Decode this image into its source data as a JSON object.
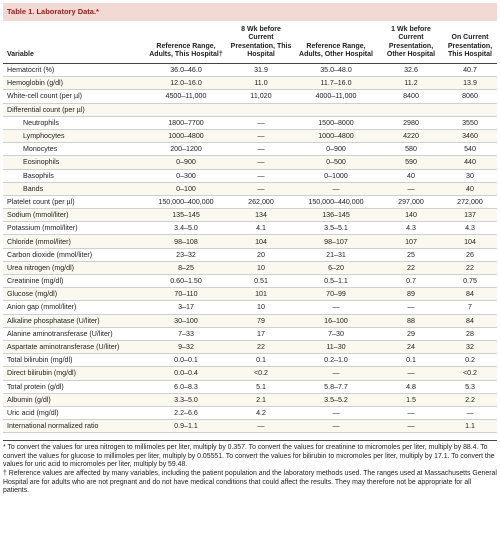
{
  "table": {
    "title": "Table 1. Laboratory Data.*",
    "headers": [
      "Variable",
      "Reference Range, Adults, This Hospital†",
      "8 Wk before Current Presentation, This Hospital",
      "Reference Range, Adults, Other Hospital",
      "1 Wk before Current Presentation, Other Hospital",
      "On Current Presentation, This Hospital"
    ],
    "rows": [
      [
        "Hematocrit (%)",
        "36.0–46.0",
        "31.9",
        "35.0–48.0",
        "32.6",
        "40.7"
      ],
      [
        "Hemoglobin (g/dl)",
        "12.0–16.0",
        "11.0",
        "11.7–16.0",
        "11.2",
        "13.9"
      ],
      [
        "White-cell count (per µl)",
        "4500–11,000",
        "11,020",
        "4000–11,000",
        "8400",
        "8060"
      ],
      {
        "label": "Differential count (per µl)",
        "rows": [
          [
            "Neutrophils",
            "1800–7700",
            "—",
            "1500–8000",
            "2980",
            "3550"
          ],
          [
            "Lymphocytes",
            "1000–4800",
            "—",
            "1000–4800",
            "4220",
            "3460"
          ],
          [
            "Monocytes",
            "200–1200",
            "—",
            "0–900",
            "580",
            "540"
          ],
          [
            "Eosinophils",
            "0–900",
            "—",
            "0–500",
            "590",
            "440"
          ],
          [
            "Basophils",
            "0–300",
            "—",
            "0–1000",
            "40",
            "30"
          ],
          [
            "Bands",
            "0–100",
            "—",
            "—",
            "—",
            "40"
          ]
        ]
      },
      [
        "Platelet count (per µl)",
        "150,000–400,000",
        "262,000",
        "150,000–440,000",
        "297,000",
        "272,000"
      ],
      [
        "Sodium (mmol/liter)",
        "135–145",
        "134",
        "136–145",
        "140",
        "137"
      ],
      [
        "Potassium (mmol/liter)",
        "3.4–5.0",
        "4.1",
        "3.5–5.1",
        "4.3",
        "4.3"
      ],
      [
        "Chloride (mmol/liter)",
        "98–108",
        "104",
        "98–107",
        "107",
        "104"
      ],
      [
        "Carbon dioxide (mmol/liter)",
        "23–32",
        "20",
        "21–31",
        "25",
        "26"
      ],
      [
        "Urea nitrogen (mg/dl)",
        "8–25",
        "10",
        "6–20",
        "22",
        "22"
      ],
      [
        "Creatinine (mg/dl)",
        "0.60–1.50",
        "0.51",
        "0.5–1.1",
        "0.7",
        "0.75"
      ],
      [
        "Glucose (mg/dl)",
        "70–110",
        "101",
        "70–99",
        "89",
        "84"
      ],
      [
        "Anion gap (mmol/liter)",
        "3–17",
        "10",
        "—",
        "—",
        "7"
      ],
      [
        "Alkaline phosphatase (U/liter)",
        "30–100",
        "79",
        "16–100",
        "88",
        "84"
      ],
      [
        "Alanine aminotransferase (U/liter)",
        "7–33",
        "17",
        "7–30",
        "29",
        "28"
      ],
      [
        "Aspartate aminotransferase (U/liter)",
        "9–32",
        "22",
        "11–30",
        "24",
        "32"
      ],
      [
        "Total bilirubin (mg/dl)",
        "0.0–0.1",
        "0.1",
        "0.2–1.0",
        "0.1",
        "0.2"
      ],
      [
        "Direct bilirubin (mg/dl)",
        "0.0–0.4",
        "<0.2",
        "—",
        "—",
        "<0.2"
      ],
      [
        "Total protein (g/dl)",
        "6.0–8.3",
        "5.1",
        "5.8–7.7",
        "4.8",
        "5.3"
      ],
      [
        "Albumin (g/dl)",
        "3.3–5.0",
        "2.1",
        "3.5–5.2",
        "1.5",
        "2.2"
      ],
      [
        "Uric acid (mg/dl)",
        "2.2–6.6",
        "4.2",
        "—",
        "—",
        "—"
      ],
      [
        "International normalized ratio",
        "0.9–1.1",
        "—",
        "—",
        "—",
        "1.1"
      ]
    ],
    "footnotes": [
      "* To convert the values for urea nitrogen to millimoles per liter, multiply by 0.357. To convert the values for creatinine to micromoles per liter, multiply by 88.4. To convert the values for glucose to millimoles per liter, multiply by 0.05551. To convert the values for bilirubin to micromoles per liter, multiply by 17.1. To convert the values for uric acid to micromoles per liter, multiply by 59.48.",
      "† Reference values are affected by many variables, including the patient population and the laboratory methods used. The ranges used at Massachusetts General Hospital are for adults who are not pregnant and do not have medical conditions that could affect the results. They may therefore not be appropriate for all patients."
    ]
  }
}
